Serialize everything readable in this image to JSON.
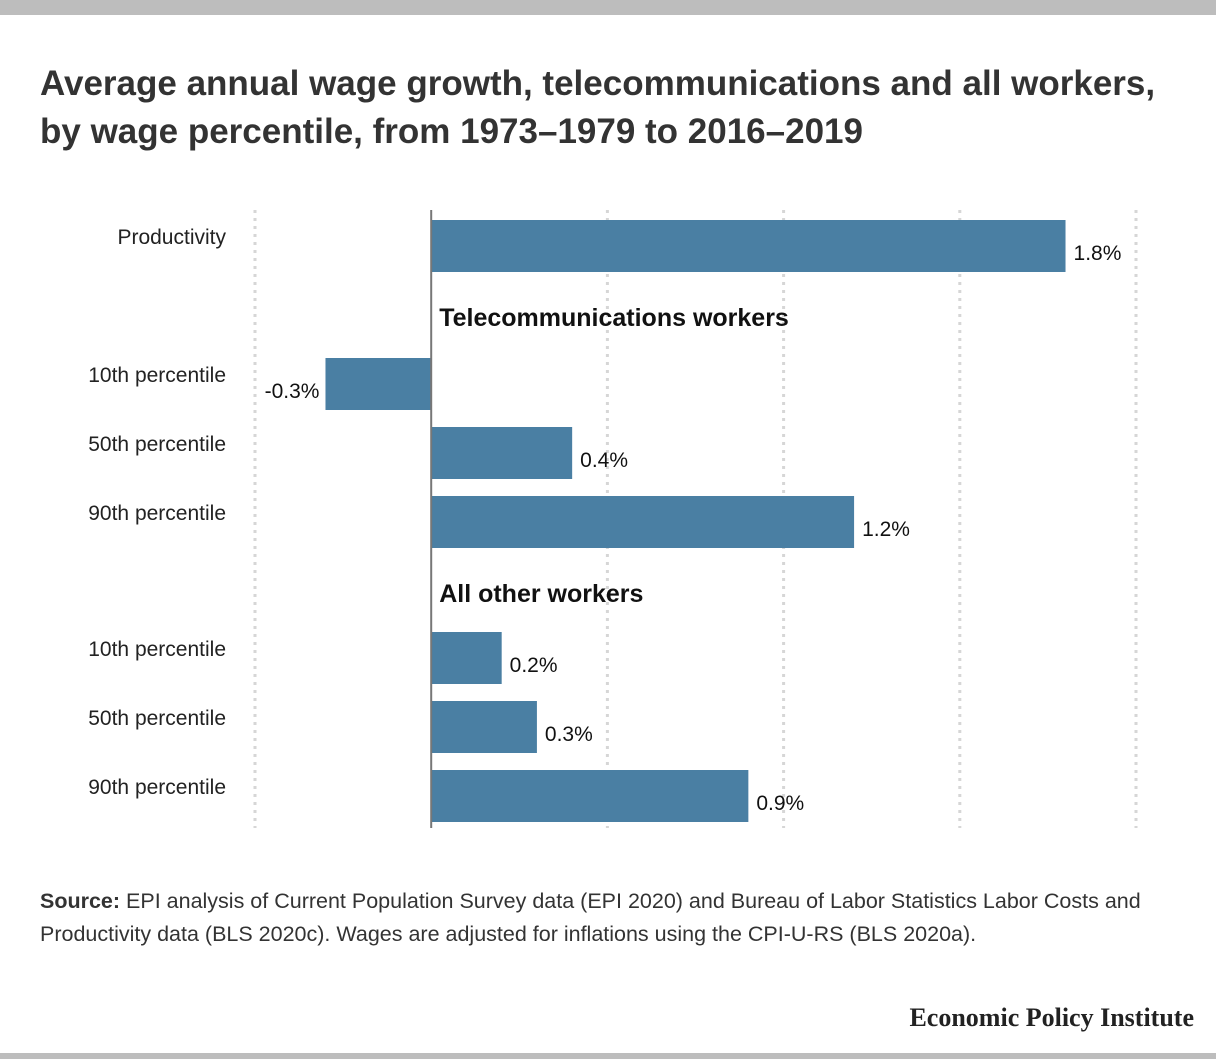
{
  "title": "Average annual wage growth, telecommunications and all workers, by wage percentile, from 1973–1979 to 2016–2019",
  "source": {
    "label": "Source:",
    "text": " EPI analysis of Current Population Survey data (EPI 2020) and Bureau of Labor Statistics Labor Costs and Productivity data (BLS 2020c). Wages are adjusted for inflations using the CPI-U-RS (BLS 2020a)."
  },
  "brand": "Economic Policy Institute",
  "chart_data": {
    "type": "bar",
    "orientation": "horizontal",
    "bar_color": "#4a7fa3",
    "xlim": [
      -0.5,
      2.0
    ],
    "gridlines": [
      -0.5,
      0,
      0.5,
      1.0,
      1.5,
      2.0
    ],
    "grid": true,
    "rows": [
      {
        "kind": "bar",
        "label": "Productivity",
        "value": 1.8,
        "value_label": "1.8%"
      },
      {
        "kind": "group",
        "label": "Telecommunications workers"
      },
      {
        "kind": "bar",
        "label": "10th percentile",
        "value": -0.3,
        "value_label": "-0.3%"
      },
      {
        "kind": "bar",
        "label": "50th percentile",
        "value": 0.4,
        "value_label": "0.4%"
      },
      {
        "kind": "bar",
        "label": "90th percentile",
        "value": 1.2,
        "value_label": "1.2%"
      },
      {
        "kind": "group",
        "label": "All other workers"
      },
      {
        "kind": "bar",
        "label": "10th percentile",
        "value": 0.2,
        "value_label": "0.2%"
      },
      {
        "kind": "bar",
        "label": "50th percentile",
        "value": 0.3,
        "value_label": "0.3%"
      },
      {
        "kind": "bar",
        "label": "90th percentile",
        "value": 0.9,
        "value_label": "0.9%"
      }
    ]
  }
}
